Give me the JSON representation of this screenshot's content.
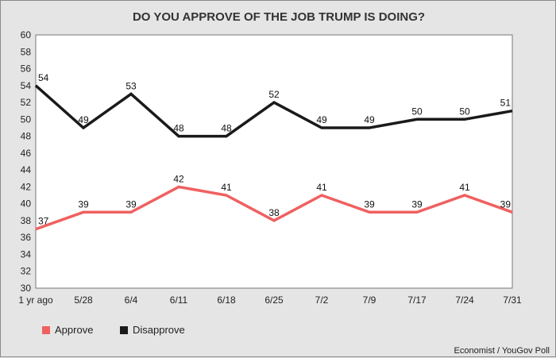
{
  "chart_data": {
    "type": "line",
    "title": "DO YOU APPROVE OF THE JOB TRUMP IS DOING?",
    "xlabel": "",
    "ylabel": "",
    "categories": [
      "1 yr ago",
      "5/28",
      "6/4",
      "6/11",
      "6/18",
      "6/25",
      "7/2",
      "7/9",
      "7/17",
      "7/24",
      "7/31"
    ],
    "ylim": [
      30,
      60
    ],
    "yticks": [
      30,
      32,
      34,
      36,
      38,
      40,
      42,
      44,
      46,
      48,
      50,
      52,
      54,
      56,
      58,
      60
    ],
    "grid": false,
    "legend_position": "bottom-left",
    "series": [
      {
        "name": "Approve",
        "color": "#f06060",
        "values": [
          37,
          39,
          39,
          42,
          41,
          38,
          41,
          39,
          39,
          41,
          39
        ]
      },
      {
        "name": "Disapprove",
        "color": "#1a1a1a",
        "values": [
          54,
          49,
          53,
          48,
          48,
          52,
          49,
          49,
          50,
          50,
          51
        ]
      }
    ],
    "source": "Economist / YouGov Poll"
  }
}
